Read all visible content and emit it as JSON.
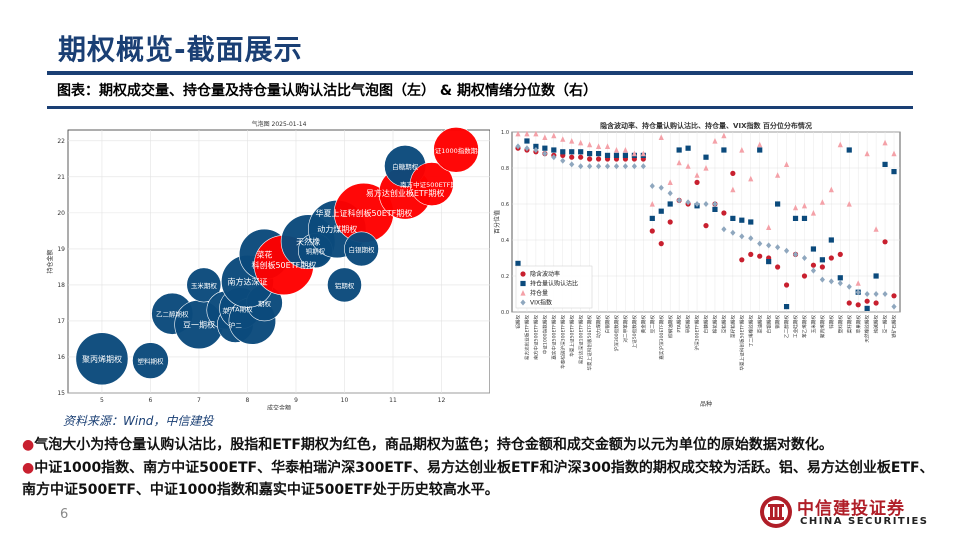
{
  "page": {
    "title": "期权概览-截面展示",
    "subtitle": "图表：期权成交量、持仓量及持仓量认购认沽比气泡图（左） & 期权情绪分位数（右）",
    "source": "资料来源：Wind，中信建投",
    "bullet1": "气泡大小为持仓量认购认沽比，股指和ETF期权为红色，商品期权为蓝色；持仓金额和成交金额为以元为单位的原始数据对数化。",
    "bullet2": "中证1000指数、南方中证500ETF、华泰柏瑞沪深300ETF、易方达创业板ETF和沪深300指数的期权成交较为活跃。铝、易方达创业板ETF、南方中证500ETF、中证1000指数和嘉实中证500ETF处于历史较高水平。",
    "bullet_mark": "●",
    "page_number": "6",
    "logo_cn": "中信建投证券",
    "logo_en": "CHINA SECURITIES",
    "colors": {
      "navy": "#1a3f74",
      "red": "#ff0000",
      "blue": "#0b4a7c",
      "brand_red": "#b01e28"
    }
  },
  "chart_data": [
    {
      "type": "scatter",
      "subtype": "bubble",
      "title": "气泡图    2025-01-14",
      "xlabel": "成交金额",
      "ylabel": "持仓金额",
      "xlim": [
        4.3,
        13
      ],
      "ylim": [
        15,
        22.3
      ],
      "xticks": [
        5,
        6,
        7,
        8,
        9,
        10,
        11,
        12
      ],
      "yticks": [
        15,
        16,
        17,
        18,
        19,
        20,
        21,
        22
      ],
      "grid": true,
      "points": [
        {
          "x": 5.0,
          "y": 15.95,
          "size": 1.9,
          "color": "blue",
          "label": "聚丙烯期权"
        },
        {
          "x": 6.0,
          "y": 15.9,
          "size": 1.0,
          "color": "blue",
          "label": "塑料期权"
        },
        {
          "x": 6.45,
          "y": 17.2,
          "size": 1.3,
          "color": "blue",
          "label": "乙二醇期权"
        },
        {
          "x": 7.0,
          "y": 16.9,
          "size": 1.7,
          "color": "blue",
          "label": "豆一期权"
        },
        {
          "x": 7.1,
          "y": 18.0,
          "size": 0.9,
          "color": "blue",
          "label": "玉米期权"
        },
        {
          "x": 7.55,
          "y": 17.3,
          "size": 1.1,
          "color": "blue",
          "label": "菜"
        },
        {
          "x": 7.75,
          "y": 16.9,
          "size": 1.0,
          "color": "blue",
          "label": "沪二"
        },
        {
          "x": 7.85,
          "y": 17.35,
          "size": 1.3,
          "color": "blue",
          "label": "PTA期权"
        },
        {
          "x": 8.1,
          "y": 17.0,
          "size": 1.6,
          "color": "blue",
          "label": ""
        },
        {
          "x": 8.35,
          "y": 17.5,
          "size": 1.0,
          "color": "blue",
          "label": "期权"
        },
        {
          "x": 8.0,
          "y": 18.1,
          "size": 1.9,
          "color": "blue",
          "label": "南方达深证"
        },
        {
          "x": 8.35,
          "y": 18.85,
          "size": 1.8,
          "color": "blue",
          "label": "菜花"
        },
        {
          "x": 8.75,
          "y": 18.55,
          "size": 2.3,
          "color": "red",
          "label": "科创板50ETF期权"
        },
        {
          "x": 9.25,
          "y": 19.2,
          "size": 2.0,
          "color": "blue",
          "label": "天然橡"
        },
        {
          "x": 9.4,
          "y": 18.95,
          "size": 0.9,
          "color": "blue",
          "label": "铜期权"
        },
        {
          "x": 9.85,
          "y": 19.55,
          "size": 2.2,
          "color": "blue",
          "label": "动力煤期权"
        },
        {
          "x": 10.4,
          "y": 20.0,
          "size": 2.3,
          "color": "red",
          "label": "华夏上证科创板50ETF期权"
        },
        {
          "x": 10.35,
          "y": 19.0,
          "size": 0.9,
          "color": "blue",
          "label": "白银期权"
        },
        {
          "x": 10.0,
          "y": 18.0,
          "size": 0.9,
          "color": "blue",
          "label": "铝期权"
        },
        {
          "x": 11.25,
          "y": 20.55,
          "size": 1.9,
          "color": "red",
          "label": "易方达创业板ETF期权"
        },
        {
          "x": 11.25,
          "y": 21.3,
          "size": 1.3,
          "color": "blue",
          "label": "白糖期权"
        },
        {
          "x": 11.8,
          "y": 20.8,
          "size": 1.4,
          "color": "red",
          "label": "南方中证500ETF期权"
        },
        {
          "x": 12.3,
          "y": 21.75,
          "size": 1.5,
          "color": "red",
          "label": "中证1000指数期权"
        }
      ]
    },
    {
      "type": "scatter",
      "title": "隐含波动率、持仓量认购认沽比、持仓量、VIX指数 百分位分布情况",
      "xlabel": "品种",
      "ylabel": "百分位值",
      "ylim": [
        0,
        1
      ],
      "yticks": [
        0.0,
        0.2,
        0.4,
        0.6,
        0.8,
        1.0
      ],
      "grid": true,
      "legend_position": "lower-left",
      "categories": [
        "铝期权",
        "易方达创业板ETF期权",
        "南方中证500ETF期权",
        "中证1000指数期权",
        "嘉实中证500ETF期权",
        "华泰柏瑞沪深300ETF期权",
        "华夏上证50ETF期权",
        "易方达深证100ETF期权",
        "华夏上证科创板50ETF期权",
        "动力煤期权",
        "白银期权",
        "沪深300指数期权",
        "对二甲苯期权",
        "上证50指数期权",
        "黄金期权",
        "豆二期权",
        "嘉实沪深300ETF期权",
        "棕榈油期权",
        "PTA期权",
        "甲醇期权",
        "沪深300ETF期权",
        "白糖期权",
        "棉花期权",
        "豆粕期权",
        "菜籽粕期权",
        "华夏上证科创板50ETF期权",
        "丁二烯橡胶期权",
        "菜油期权",
        "白银期权",
        "铜期权",
        "乙二醇期权",
        "工业硅期权",
        "苯乙烯期权",
        "玉米期权",
        "聚丙烯期权",
        "锌期权",
        "塑料期权",
        "菜籽期权",
        "苹果期权",
        "天然橡胶期权",
        "纯碱期权",
        "豆一期权",
        "铁矿石期权"
      ],
      "series": [
        {
          "name": "隐含波动率",
          "color": "#c8202f",
          "marker": "circle",
          "values": [
            0.91,
            0.9,
            0.89,
            0.88,
            0.87,
            0.87,
            0.86,
            0.86,
            0.85,
            0.85,
            0.85,
            0.85,
            0.85,
            0.85,
            0.85,
            0.45,
            0.38,
            0.5,
            0.62,
            0.6,
            0.72,
            0.48,
            0.6,
            0.55,
            0.77,
            0.29,
            0.32,
            0.31,
            0.3,
            0.25,
            0.15,
            0.32,
            0.2,
            0.26,
            0.25,
            0.3,
            0.32,
            0.05,
            0.04,
            0.06,
            0.05,
            0.39,
            0.09
          ]
        },
        {
          "name": "持仓量认购认沽比",
          "color": "#0b4a7c",
          "marker": "square",
          "values": [
            0.27,
            0.95,
            0.92,
            0.91,
            0.9,
            0.89,
            0.89,
            0.89,
            0.88,
            0.88,
            0.87,
            0.87,
            0.87,
            0.87,
            0.87,
            0.52,
            0.56,
            0.6,
            0.9,
            0.91,
            0.59,
            0.86,
            0.57,
            0.9,
            0.52,
            0.51,
            0.5,
            0.9,
            0.28,
            0.6,
            0.03,
            0.52,
            0.52,
            0.35,
            0.29,
            0.4,
            0.19,
            0.9,
            0.11,
            0.02,
            0.2,
            0.82,
            0.78
          ]
        },
        {
          "name": "持仓量",
          "color": "#f4a1a8",
          "marker": "triangle",
          "values": [
            0.99,
            0.99,
            0.99,
            0.97,
            0.98,
            0.96,
            0.95,
            0.94,
            0.93,
            0.92,
            0.92,
            0.9,
            0.9,
            0.88,
            0.88,
            0.6,
            0.97,
            0.72,
            0.83,
            0.81,
            0.76,
            0.8,
            0.95,
            0.98,
            0.68,
            0.9,
            0.74,
            0.93,
            0.47,
            0.76,
            0.82,
            0.58,
            0.59,
            0.55,
            0.61,
            0.68,
            0.93,
            0.6,
            0.16,
            0.88,
            0.46,
            0.94,
            0.88
          ]
        },
        {
          "name": "VIX指数",
          "color": "#8fa7be",
          "marker": "diamond",
          "values": [
            0.92,
            0.91,
            0.9,
            0.88,
            0.86,
            0.84,
            0.82,
            0.81,
            0.81,
            0.81,
            0.81,
            0.81,
            0.81,
            0.81,
            0.81,
            0.7,
            0.69,
            0.66,
            0.62,
            0.61,
            0.6,
            0.6,
            0.6,
            0.46,
            0.44,
            0.42,
            0.41,
            0.38,
            0.37,
            0.36,
            0.34,
            0.32,
            0.3,
            0.23,
            0.18,
            0.17,
            0.16,
            0.14,
            0.11,
            0.1,
            0.1,
            0.1,
            0.03
          ]
        }
      ]
    }
  ]
}
